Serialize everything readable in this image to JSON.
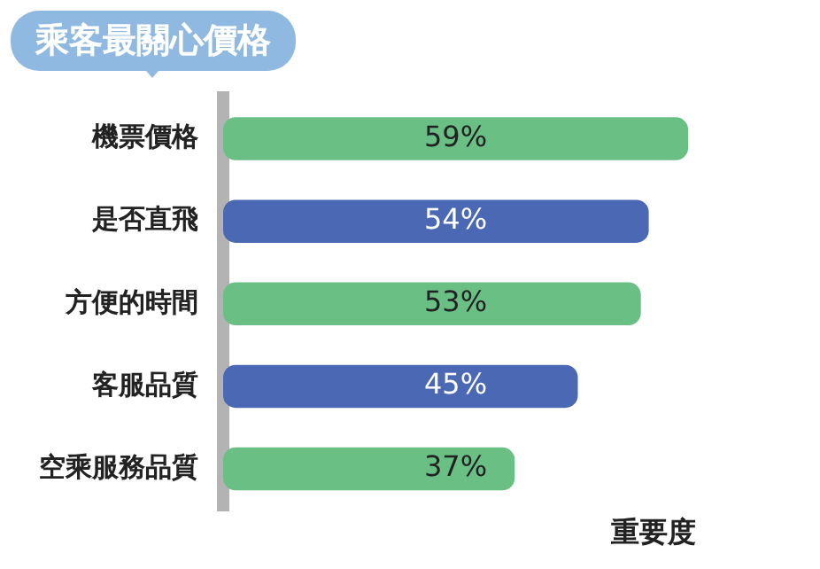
{
  "chart_data": {
    "type": "bar",
    "orientation": "horizontal",
    "title": "乘客最關心價格",
    "xlabel": "重要度",
    "categories": [
      "機票價格",
      "是否直飛",
      "方便的時間",
      "客服品質",
      "空乘服務品質"
    ],
    "values": [
      59,
      54,
      53,
      45,
      37
    ],
    "colors": [
      "#6abf85",
      "#4a68b3",
      "#6abf85",
      "#4a68b3",
      "#6abf85"
    ],
    "value_labels": [
      "59%",
      "54%",
      "53%",
      "45%",
      "37%"
    ],
    "grid": false,
    "legend": false
  }
}
